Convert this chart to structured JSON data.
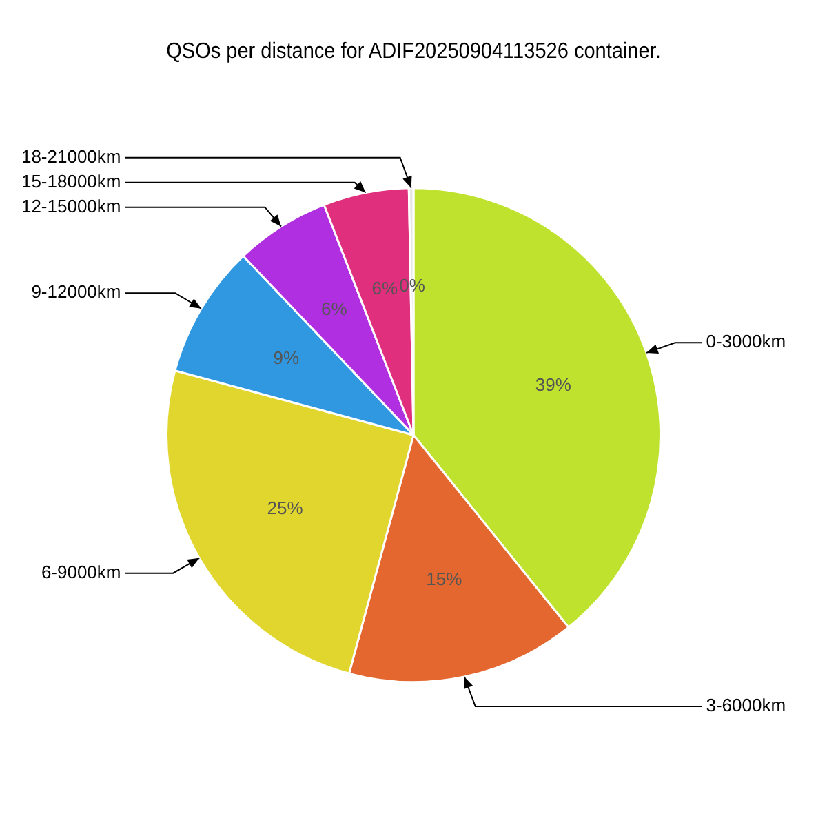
{
  "chart_data": {
    "type": "pie",
    "title": "QSOs per distance for ADIF20250904113526 container.",
    "categories": [
      "0-3000km",
      "3-6000km",
      "6-9000km",
      "9-12000km",
      "12-15000km",
      "15-18000km",
      "18-21000km"
    ],
    "values": [
      39.2,
      15.0,
      25.0,
      8.7,
      6.2,
      5.6,
      0.3
    ],
    "value_labels": [
      "39%",
      "15%",
      "25%",
      "9%",
      "6%",
      "6%",
      "0%"
    ],
    "colors": [
      "#bfe22e",
      "#e3672f",
      "#e0d62d",
      "#2f98e0",
      "#b02fe0",
      "#e02f7c",
      "#e6e6e6"
    ],
    "legend": false
  }
}
